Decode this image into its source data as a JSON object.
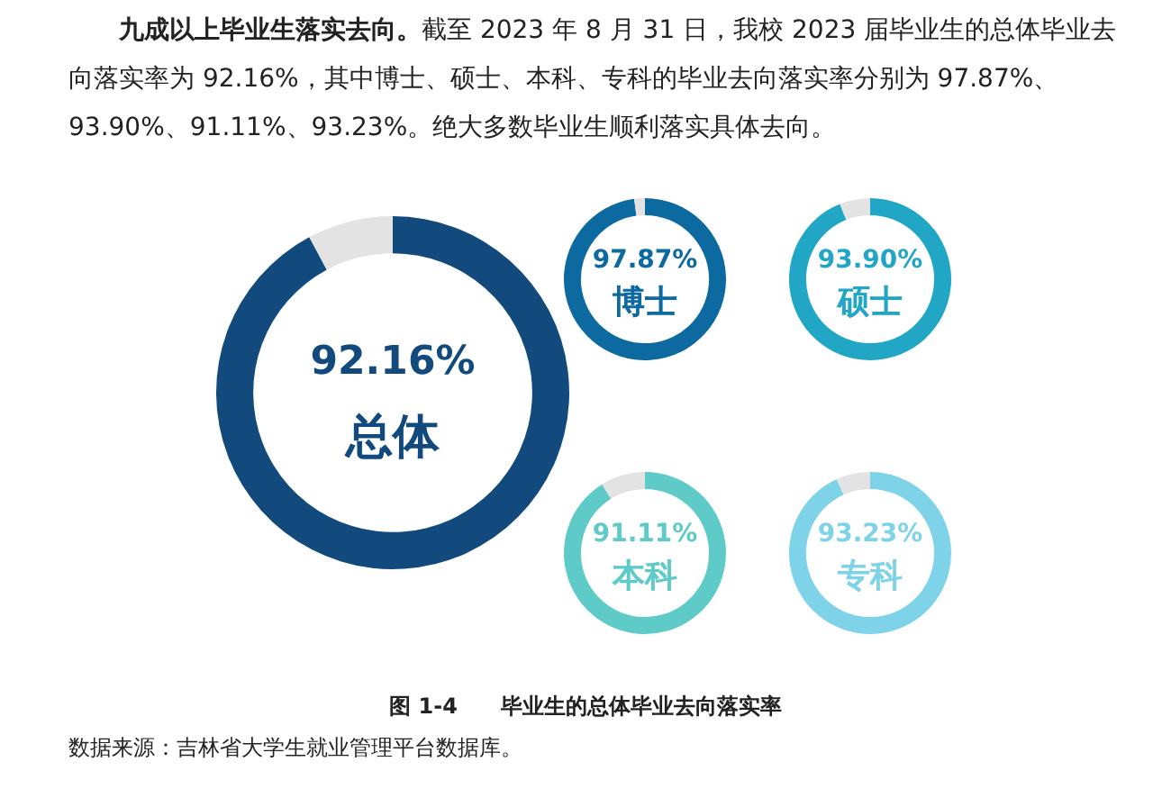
{
  "chart_data": [
    {
      "type": "other",
      "annotations": [
        "九成以上毕业生落实去向。",
        "截至 2023 年 8 月 31 日，我校 2023 届毕业生的总体毕业去向落实率为 92.16%，其中博士、硕士、本科、专科的毕业去向落实率分别为 97.87%、93.90%、91.11%、93.23%。绝大多数毕业生顺利落实具体去向。"
      ]
    },
    {
      "type": "donut",
      "categories": [
        "总体",
        null
      ],
      "values": [
        92.16,
        7.84
      ],
      "colors": [
        "#124a7e",
        "#e3e3e3"
      ],
      "value_labels": [
        "92.16%",
        null
      ]
    },
    {
      "type": "donut",
      "categories": [
        "博士",
        null
      ],
      "values": [
        97.87,
        2.13
      ],
      "colors": [
        "#0d6aa1",
        "#e3e3e3"
      ],
      "value_labels": [
        "97.87%",
        null
      ]
    },
    {
      "type": "donut",
      "categories": [
        "硕士",
        null
      ],
      "values": [
        93.9,
        6.1
      ],
      "colors": [
        "#22a6c6",
        "#e3e3e3"
      ],
      "value_labels": [
        "93.90%",
        null
      ]
    },
    {
      "type": "donut",
      "categories": [
        "本科",
        null
      ],
      "values": [
        91.11,
        8.89
      ],
      "colors": [
        "#5fcbc9",
        "#e3e3e3"
      ],
      "value_labels": [
        "91.11%",
        null
      ]
    },
    {
      "type": "donut",
      "categories": [
        "专科",
        null
      ],
      "values": [
        93.23,
        6.77
      ],
      "colors": [
        "#7fd3e9",
        "#e3e3e3"
      ],
      "value_labels": [
        "93.23%",
        null
      ]
    },
    {
      "type": "other",
      "title": "图 1-4　　毕业生的总体毕业去向落实率",
      "annotations": [
        "数据来源：吉林省大学生就业管理平台数据库。"
      ]
    }
  ]
}
